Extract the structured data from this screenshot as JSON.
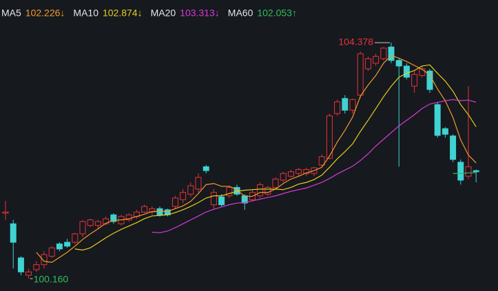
{
  "chart_data": {
    "type": "candlestick",
    "up_color": "#e8323a",
    "down_color": "#3fd3d3",
    "background": "#16191e",
    "ylim": [
      100.0,
      105.14
    ],
    "open": [
      101.33,
      101.14,
      100.53,
      100.22,
      100.32,
      100.41,
      100.56,
      100.78,
      100.81,
      100.81,
      100.96,
      101.11,
      101.11,
      101.14,
      101.3,
      101.14,
      101.21,
      101.27,
      101.35,
      101.35,
      101.41,
      101.39,
      101.45,
      101.57,
      101.67,
      101.76,
      102.16,
      101.48,
      101.62,
      101.64,
      101.79,
      101.64,
      101.57,
      101.64,
      101.67,
      101.79,
      101.92,
      101.99,
      102.04,
      102.04,
      102.04,
      102.19,
      102.31,
      103.11,
      103.38,
      103.17,
      103.44,
      103.91,
      104.01,
      104.09,
      104.3,
      104.06,
      103.96,
      103.6,
      103.79,
      103.87,
      103.27,
      102.84,
      102.71,
      102.24,
      101.99,
      102.09
    ],
    "close": [
      101.35,
      100.81,
      100.28,
      100.28,
      100.41,
      100.59,
      100.71,
      100.69,
      100.74,
      100.96,
      101.18,
      101.21,
      101.18,
      101.23,
      101.18,
      101.27,
      101.3,
      101.35,
      101.45,
      101.41,
      101.3,
      101.3,
      101.6,
      101.7,
      101.82,
      101.97,
      102.09,
      101.7,
      101.48,
      101.79,
      101.67,
      101.51,
      101.7,
      101.84,
      101.79,
      101.94,
      102.04,
      102.07,
      102.11,
      102.11,
      102.14,
      102.34,
      103.07,
      103.32,
      103.17,
      103.36,
      104.18,
      104.09,
      104.13,
      104.28,
      104.06,
      103.96,
      103.76,
      103.81,
      103.91,
      103.54,
      102.72,
      102.74,
      102.29,
      101.92,
      102.16,
      102.07
    ],
    "high": [
      101.55,
      101.21,
      100.56,
      100.34,
      100.47,
      100.65,
      100.74,
      100.81,
      100.87,
      100.98,
      101.21,
      101.23,
      101.21,
      101.27,
      101.33,
      101.3,
      101.33,
      101.39,
      101.48,
      101.45,
      101.45,
      101.41,
      101.64,
      101.76,
      101.88,
      102.04,
      102.19,
      101.76,
      101.67,
      101.82,
      101.84,
      101.67,
      101.76,
      101.88,
      101.82,
      101.97,
      102.07,
      102.11,
      102.14,
      102.14,
      102.16,
      102.38,
      103.11,
      103.36,
      103.44,
      103.38,
      104.22,
      104.13,
      104.18,
      104.3,
      104.378,
      104.09,
      104.01,
      103.87,
      103.96,
      103.91,
      103.32,
      102.87,
      102.74,
      102.29,
      103.6,
      102.11
    ],
    "low": [
      101.21,
      100.34,
      100.22,
      100.16,
      100.28,
      100.34,
      100.53,
      100.65,
      100.71,
      100.78,
      100.9,
      101.08,
      101.05,
      101.11,
      101.14,
      101.11,
      101.18,
      101.23,
      101.33,
      101.3,
      101.27,
      101.27,
      101.41,
      101.51,
      101.62,
      101.7,
      102.04,
      101.41,
      101.45,
      101.6,
      101.64,
      101.39,
      101.55,
      101.6,
      101.64,
      101.76,
      101.88,
      101.97,
      101.99,
      101.99,
      101.99,
      102.16,
      102.29,
      103.07,
      103.11,
      103.11,
      103.38,
      103.87,
      103.96,
      104.06,
      104.01,
      102.16,
      103.72,
      103.48,
      103.76,
      103.48,
      102.68,
      102.68,
      102.24,
      101.84,
      101.94,
      101.88
    ],
    "series": [
      {
        "name": "MA5",
        "color": "#f39a2c",
        "last": {
          "value": 102.226,
          "label": "102.226↓"
        },
        "values": [
          null,
          null,
          null,
          null,
          100.63,
          100.47,
          100.45,
          100.54,
          100.63,
          100.74,
          100.86,
          100.96,
          101.05,
          101.15,
          101.2,
          101.21,
          101.23,
          101.27,
          101.31,
          101.36,
          101.36,
          101.36,
          101.41,
          101.46,
          101.54,
          101.68,
          101.84,
          101.86,
          101.81,
          101.81,
          101.75,
          101.63,
          101.63,
          101.7,
          101.7,
          101.76,
          101.86,
          101.94,
          101.99,
          102.05,
          102.09,
          102.15,
          102.35,
          102.6,
          102.81,
          103.05,
          103.42,
          103.62,
          103.79,
          104.01,
          104.15,
          104.1,
          104.04,
          103.97,
          103.9,
          103.8,
          103.55,
          103.34,
          103.04,
          102.64,
          102.37,
          102.226
        ]
      },
      {
        "name": "MA10",
        "color": "#e6cf1e",
        "last": {
          "value": 102.874,
          "label": "102.874↓"
        },
        "values": [
          null,
          null,
          null,
          null,
          null,
          null,
          null,
          null,
          null,
          100.69,
          100.67,
          100.71,
          100.8,
          100.89,
          100.97,
          101.04,
          101.1,
          101.16,
          101.23,
          101.28,
          101.29,
          101.3,
          101.34,
          101.39,
          101.45,
          101.52,
          101.6,
          101.64,
          101.64,
          101.68,
          101.72,
          101.74,
          101.75,
          101.76,
          101.76,
          101.76,
          101.75,
          101.79,
          101.85,
          101.88,
          101.93,
          102.01,
          102.15,
          102.3,
          102.43,
          102.57,
          102.79,
          102.99,
          103.2,
          103.41,
          103.6,
          103.76,
          103.83,
          103.88,
          103.96,
          103.98,
          103.83,
          103.69,
          103.51,
          103.27,
          103.09,
          102.874
        ]
      },
      {
        "name": "MA20",
        "color": "#d83ad8",
        "last": {
          "value": 103.313,
          "label": "103.313↓"
        },
        "values": [
          null,
          null,
          null,
          null,
          null,
          null,
          null,
          null,
          null,
          null,
          null,
          null,
          null,
          null,
          null,
          null,
          null,
          null,
          null,
          100.99,
          100.98,
          101.01,
          101.07,
          101.14,
          101.21,
          101.28,
          101.35,
          101.4,
          101.44,
          101.48,
          101.51,
          101.52,
          101.55,
          101.58,
          101.61,
          101.64,
          101.68,
          101.72,
          101.75,
          101.78,
          101.83,
          101.88,
          101.95,
          102.03,
          102.1,
          102.17,
          102.27,
          102.39,
          102.53,
          102.65,
          102.77,
          102.89,
          102.99,
          103.09,
          103.2,
          103.28,
          103.31,
          103.34,
          103.36,
          103.34,
          103.35,
          103.313
        ]
      },
      {
        "name": "MA60",
        "color": "#2fbf5a",
        "last": {
          "value": 102.053,
          "label": "102.053↑"
        },
        "values": [
          null,
          null,
          null,
          null,
          null,
          null,
          null,
          null,
          null,
          null,
          null,
          null,
          null,
          null,
          null,
          null,
          null,
          null,
          null,
          null,
          null,
          null,
          null,
          null,
          null,
          null,
          null,
          null,
          null,
          null,
          null,
          null,
          null,
          null,
          null,
          null,
          null,
          null,
          null,
          null,
          null,
          null,
          null,
          null,
          null,
          null,
          null,
          null,
          null,
          null,
          null,
          null,
          null,
          null,
          null,
          null,
          null,
          null,
          102.04,
          102.04,
          102.05,
          102.053
        ]
      }
    ],
    "high_mark": 104.378,
    "low_mark": {
      "value": 100.16,
      "label": "100.160"
    }
  }
}
